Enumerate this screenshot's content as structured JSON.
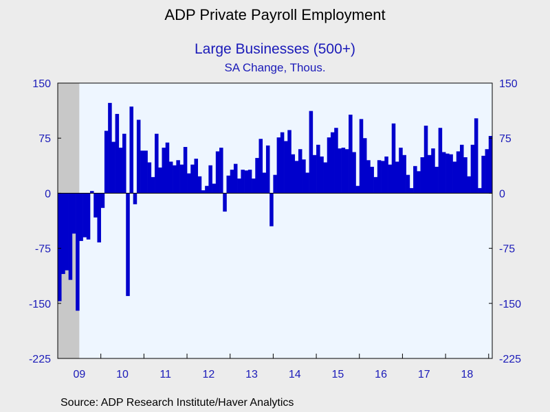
{
  "title": "ADP Private Payroll Employment",
  "subtitle": "Large Businesses (500+)",
  "units": "SA Change, Thous.",
  "source": "Source:  ADP Research Institute/Haver Analytics",
  "colors": {
    "bar": "#0000cc",
    "recession": "#c8c8c8",
    "plot_background": "#eef6ff",
    "axis_text": "#1a1ab8"
  },
  "chart_data": {
    "type": "bar",
    "title": "ADP Private Payroll Employment",
    "subtitle": "Large Businesses (500+)",
    "ylabel": "SA Change, Thous.",
    "ylim": [
      -225,
      150
    ],
    "y_ticks": [
      150,
      75,
      0,
      -75,
      -150,
      -225
    ],
    "y_tick_labels": [
      "150",
      "75",
      "0",
      "-75",
      "-150",
      "-225"
    ],
    "x_start": "2009-01",
    "x_end": "2018-12",
    "x_tick_labels": [
      "09",
      "10",
      "11",
      "12",
      "13",
      "14",
      "15",
      "16",
      "17",
      "18"
    ],
    "recession_shading": {
      "start": "2009-01",
      "end": "2009-06"
    },
    "grid": false,
    "legend": "none",
    "series": [
      {
        "values": [
          -147,
          -110,
          -105,
          -118,
          -55,
          -160,
          -65,
          -60,
          -63,
          3,
          -33,
          -67,
          -20,
          85,
          123,
          70,
          108,
          62,
          81,
          -140,
          118,
          -15,
          100,
          58,
          58,
          42,
          22,
          81,
          35,
          62,
          69,
          43,
          38,
          45,
          39,
          63,
          27,
          39,
          47,
          23,
          4,
          10,
          38,
          13,
          57,
          62,
          -25,
          24,
          32,
          40,
          20,
          32,
          31,
          32,
          20,
          48,
          74,
          28,
          65,
          -45,
          25,
          76,
          83,
          71,
          86,
          53,
          44,
          60,
          46,
          28,
          112,
          52,
          66,
          50,
          42,
          76,
          83,
          89,
          61,
          62,
          60,
          107,
          56,
          10,
          101,
          75,
          45,
          36,
          22,
          45,
          44,
          50,
          39,
          95,
          43,
          62,
          52,
          25,
          7,
          37,
          30,
          49,
          92,
          52,
          61,
          36,
          89,
          56,
          54,
          53,
          43,
          57,
          66,
          49,
          23,
          66,
          102,
          7,
          51,
          60,
          78
        ]
      }
    ]
  }
}
